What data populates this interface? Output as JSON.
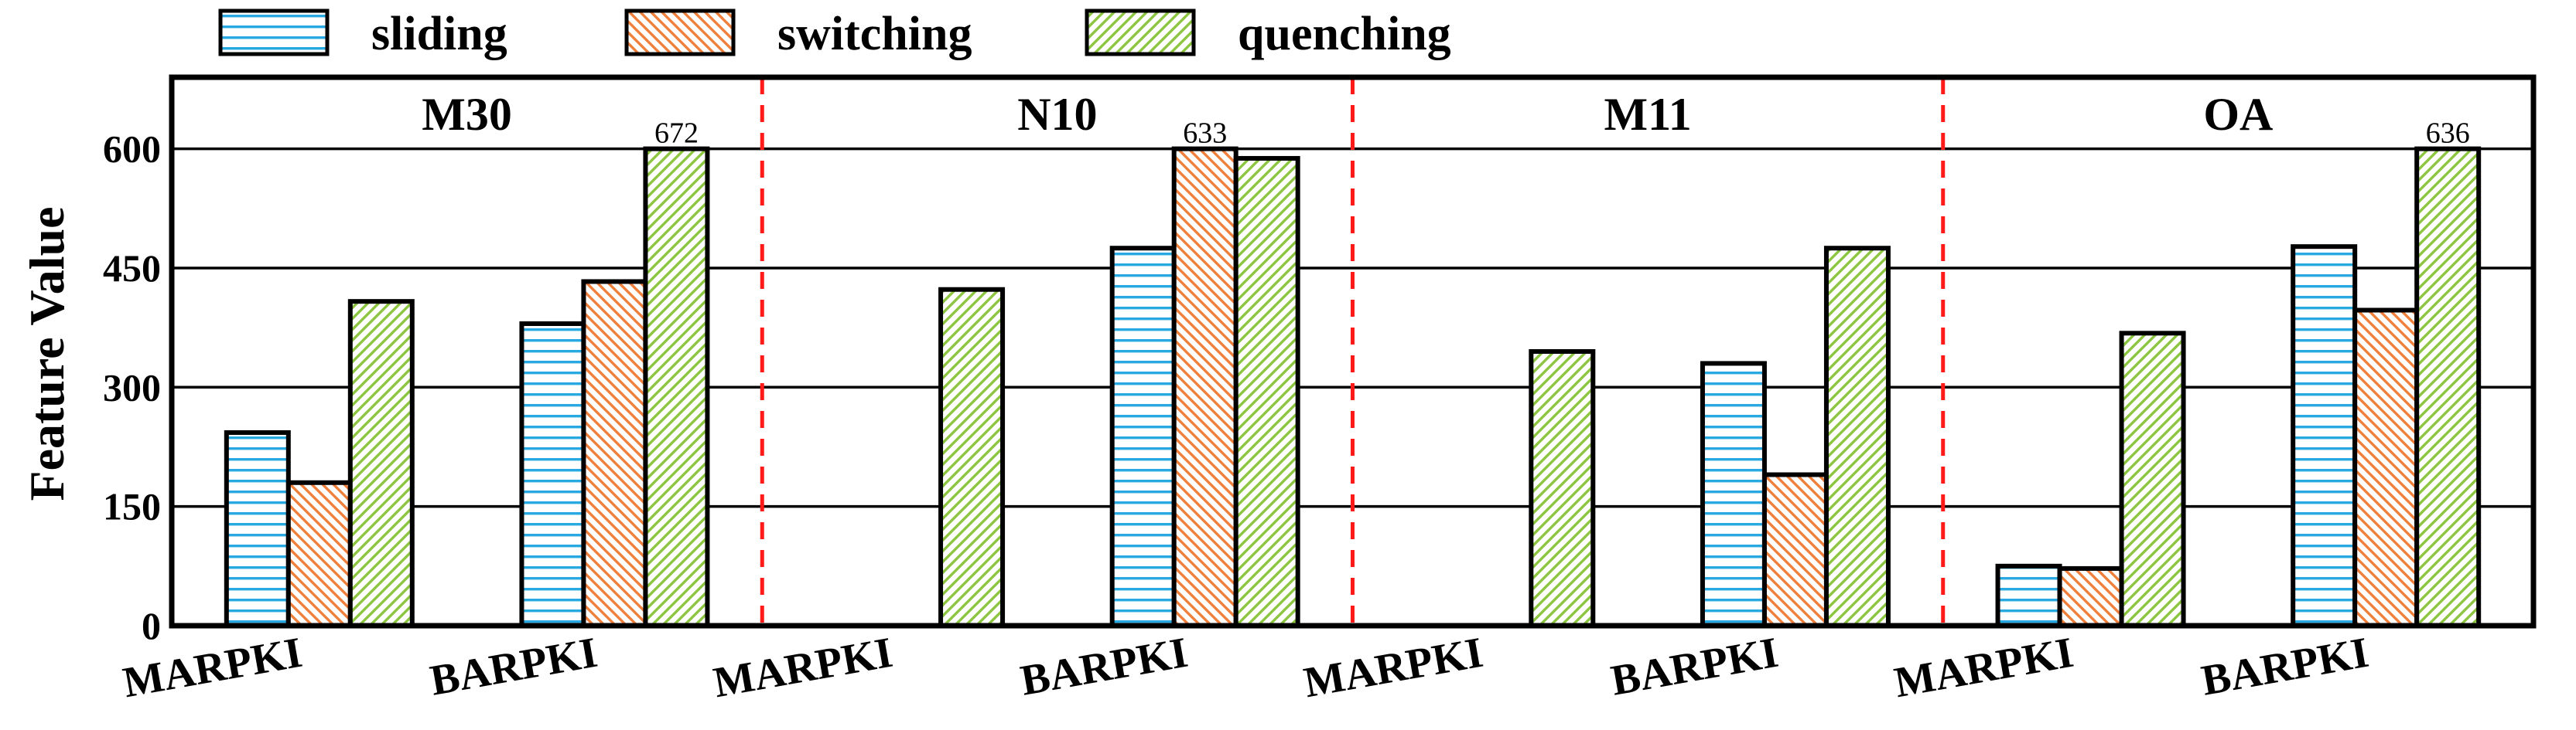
{
  "chart_data": {
    "type": "bar",
    "ylabel": "Feature Value",
    "ylim": [
      0,
      690
    ],
    "yticks": [
      "0",
      "150",
      "300",
      "450",
      "600"
    ],
    "clip_value": 600,
    "grid": "horizontal",
    "legend_position": "top-left",
    "groups": [
      "M30",
      "N10",
      "M11",
      "OA"
    ],
    "categories": [
      "MARPKI",
      "BARPKI"
    ],
    "series": [
      {
        "name": "sliding",
        "color": "#29a9e1",
        "pattern": "horizontal",
        "values": [
          [
            243,
            380
          ],
          [
            0,
            475
          ],
          [
            0,
            330
          ],
          [
            75,
            477
          ]
        ]
      },
      {
        "name": "switching",
        "color": "#f07f3c",
        "pattern": "backslash",
        "values": [
          [
            180,
            433
          ],
          [
            0,
            633
          ],
          [
            0,
            190
          ],
          [
            72,
            397
          ]
        ]
      },
      {
        "name": "quenching",
        "color": "#8cc540",
        "pattern": "slash",
        "values": [
          [
            408,
            672
          ],
          [
            423,
            588
          ],
          [
            345,
            475
          ],
          [
            368,
            636
          ]
        ]
      }
    ],
    "annotations": [
      {
        "group": 0,
        "category": 1,
        "series": 2,
        "text": "672"
      },
      {
        "group": 1,
        "category": 1,
        "series": 1,
        "text": "633"
      },
      {
        "group": 3,
        "category": 1,
        "series": 2,
        "text": "636"
      }
    ]
  }
}
